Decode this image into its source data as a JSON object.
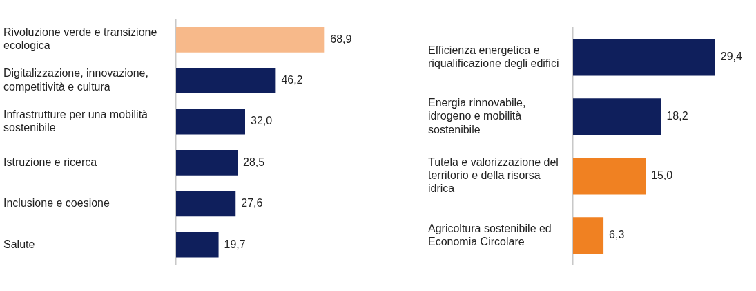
{
  "chart_data": [
    {
      "type": "bar",
      "orientation": "horizontal",
      "categories": [
        "Rivoluzione verde e transizione ecologica",
        "Digitalizzazione, innovazione, competitività e cultura",
        "Infrastrutture per una mobilità sostenibile",
        "Istruzione e ricerca",
        "Inclusione e coesione",
        "Salute"
      ],
      "values": [
        68.9,
        46.2,
        32.0,
        28.5,
        27.6,
        19.7
      ],
      "colors": [
        "#f7b98a",
        "#0f1f5c",
        "#0f1f5c",
        "#0f1f5c",
        "#0f1f5c",
        "#0f1f5c"
      ],
      "value_labels": [
        "68,9",
        "46,2",
        "32,0",
        "28,5",
        "27,6",
        "19,7"
      ]
    },
    {
      "type": "bar",
      "orientation": "horizontal",
      "categories": [
        "Efficienza energetica e riqualificazione degli edifici",
        "Energia rinnovabile, idrogeno e mobilità sostenibile",
        "Tutela e valorizzazione del territorio e della risorsa idrica",
        "Agricoltura sostenibile ed Economia Circolare"
      ],
      "values": [
        29.4,
        18.2,
        15.0,
        6.3
      ],
      "colors": [
        "#0f1f5c",
        "#0f1f5c",
        "#f08122",
        "#f08122"
      ],
      "value_labels": [
        "29,4",
        "18,2",
        "15,0",
        "6,3"
      ]
    }
  ]
}
